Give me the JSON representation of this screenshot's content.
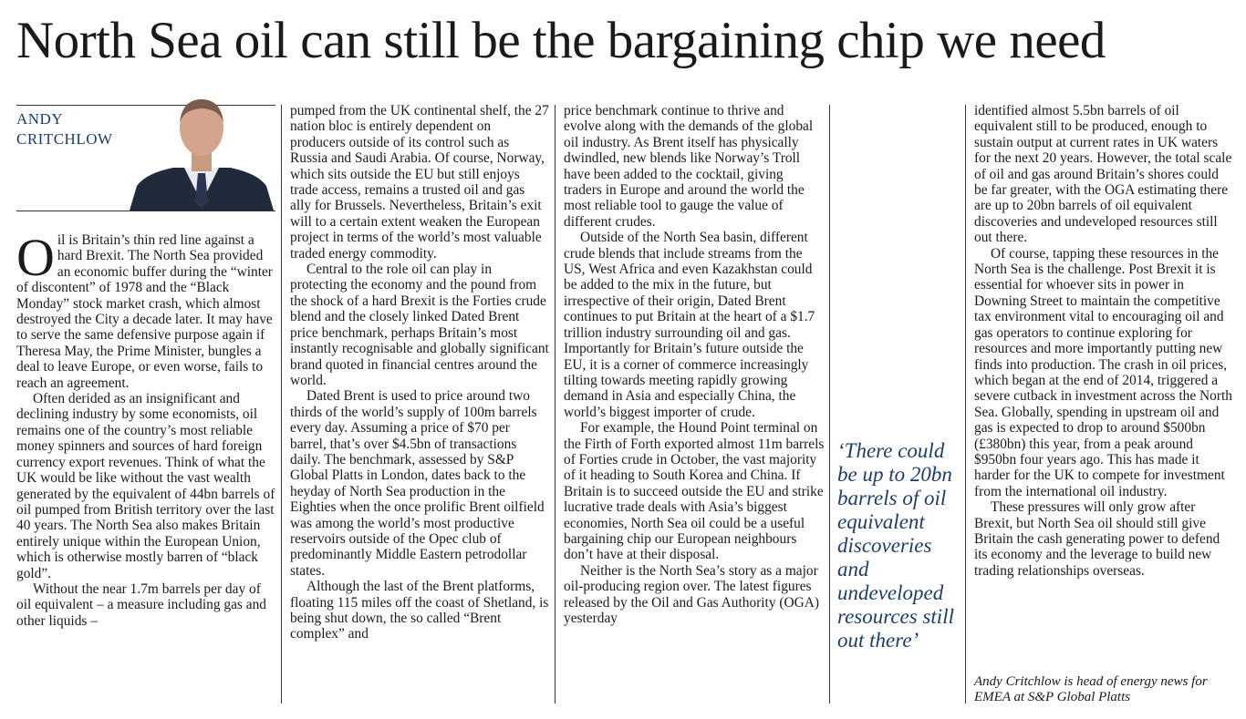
{
  "headline": "North Sea oil can still be the bargaining chip we need",
  "byline": "ANDY CRITCHLOW",
  "columns": [
    [
      "Oil is Britain’s thin red line against a hard Brexit. The North Sea provided an economic buffer during the “winter of discontent” of 1978 and the “Black Monday” stock market crash, which almost destroyed the City a decade later. It may have to serve the same defensive purpose again if Theresa May, the Prime Minister, bungles a deal to leave Europe, or even worse, fails to reach an agreement.",
      "Often derided as an insignificant and declining industry by some economists, oil remains one of the country’s most reliable money spinners and sources of hard foreign currency export revenues. Think of what the UK would be like without the vast wealth generated by the equivalent of 44bn barrels of oil pumped from British territory over the last 40 years. The North Sea also makes Britain entirely unique within the European Union, which is otherwise mostly barren of “black gold”.",
      "Without the near 1.7m barrels per day of oil equivalent – a measure including gas and other liquids –"
    ],
    [
      "pumped from the UK continental shelf, the 27 nation bloc is entirely dependent on producers outside of its control such as Russia and Saudi Arabia. Of course, Norway, which sits outside the EU but still enjoys trade access, remains a trusted oil and gas ally for Brussels. Nevertheless, Britain’s exit will to a certain extent weaken the European project in terms of the world’s most valuable traded energy commodity.",
      "Central to the role oil can play in protecting the economy and the pound from the shock of a hard Brexit is the Forties crude blend and the closely linked Dated Brent price benchmark, perhaps Britain’s most instantly recognisable and globally significant brand quoted in financial centres around the world.",
      "Dated Brent is used to price around two thirds of the world’s supply of 100m barrels every day. Assuming a price of $70 per barrel, that’s over $4.5bn of transactions daily. The benchmark, assessed by S&P Global Platts in London, dates back to the heyday of North Sea production in the Eighties when the once prolific Brent oilfield was among the world’s most productive reservoirs outside of the Opec club of predominantly Middle Eastern petrodollar states.",
      "Although the last of the Brent platforms, floating 115 miles off the coast of Shetland, is being shut down, the so called “Brent complex” and"
    ],
    [
      "price benchmark continue to thrive and evolve along with the demands of the global oil industry. As Brent itself has physically dwindled, new blends like Norway’s Troll have been added to the cocktail, giving traders in Europe and around the world the most reliable tool to gauge the value of different crudes.",
      "Outside of the North Sea basin, different crude blends that include streams from the US, West Africa and even Kazakhstan could be added to the mix in the future, but irrespective of their origin, Dated Brent continues to put Britain at the heart of a $1.7 trillion industry surrounding oil and gas. Importantly for Britain’s future outside the EU, it is a corner of commerce increasingly tilting towards meeting rapidly growing demand in Asia and especially China, the world’s biggest importer of crude.",
      "For example, the Hound Point terminal on the Firth of Forth exported almost 11m barrels of Forties crude in October, the vast majority of it heading to South Korea and China. If Britain is to succeed outside the EU and strike lucrative trade deals with Asia’s biggest economies, North Sea oil could be a useful bargaining chip our European neighbours don’t have at their disposal.",
      "Neither is the North Sea’s story as a major oil-producing region over. The latest figures released by the Oil and Gas Authority (OGA) yesterday"
    ],
    [
      "identified almost 5.5bn barrels of oil equivalent still to be produced, enough to sustain output at current rates in UK waters for the next 20 years. However, the total scale of oil and gas around Britain’s shores could be far greater, with the OGA estimating there are up to 20bn barrels of oil equivalent discoveries and undeveloped resources still out there.",
      "Of course, tapping these resources in the North Sea is the challenge. Post Brexit it is essential for whoever sits in power in Downing Street to maintain the competitive tax environment vital to encouraging oil and gas operators to continue exploring for resources and more importantly putting new finds into production. The crash in oil prices, which began at the end of 2014, triggered a severe cutback in investment across the North Sea. Globally, spending in upstream oil and gas is expected to drop to around $500bn (£380bn) this year, from a peak around $950bn four years ago. This has made it harder for the UK to compete for investment from the international oil industry.",
      "These pressures will only grow after Brexit, but North Sea oil should still give Britain the cash generating power to defend its economy and the leverage to build new trading relationships overseas."
    ]
  ],
  "pull_quote": "‘There could be up to 20bn barrels of oil equivalent discoveries and undeveloped resources still out there’",
  "bio": "Andy Critchlow is head of energy news for EMEA at S&P Global Platts"
}
